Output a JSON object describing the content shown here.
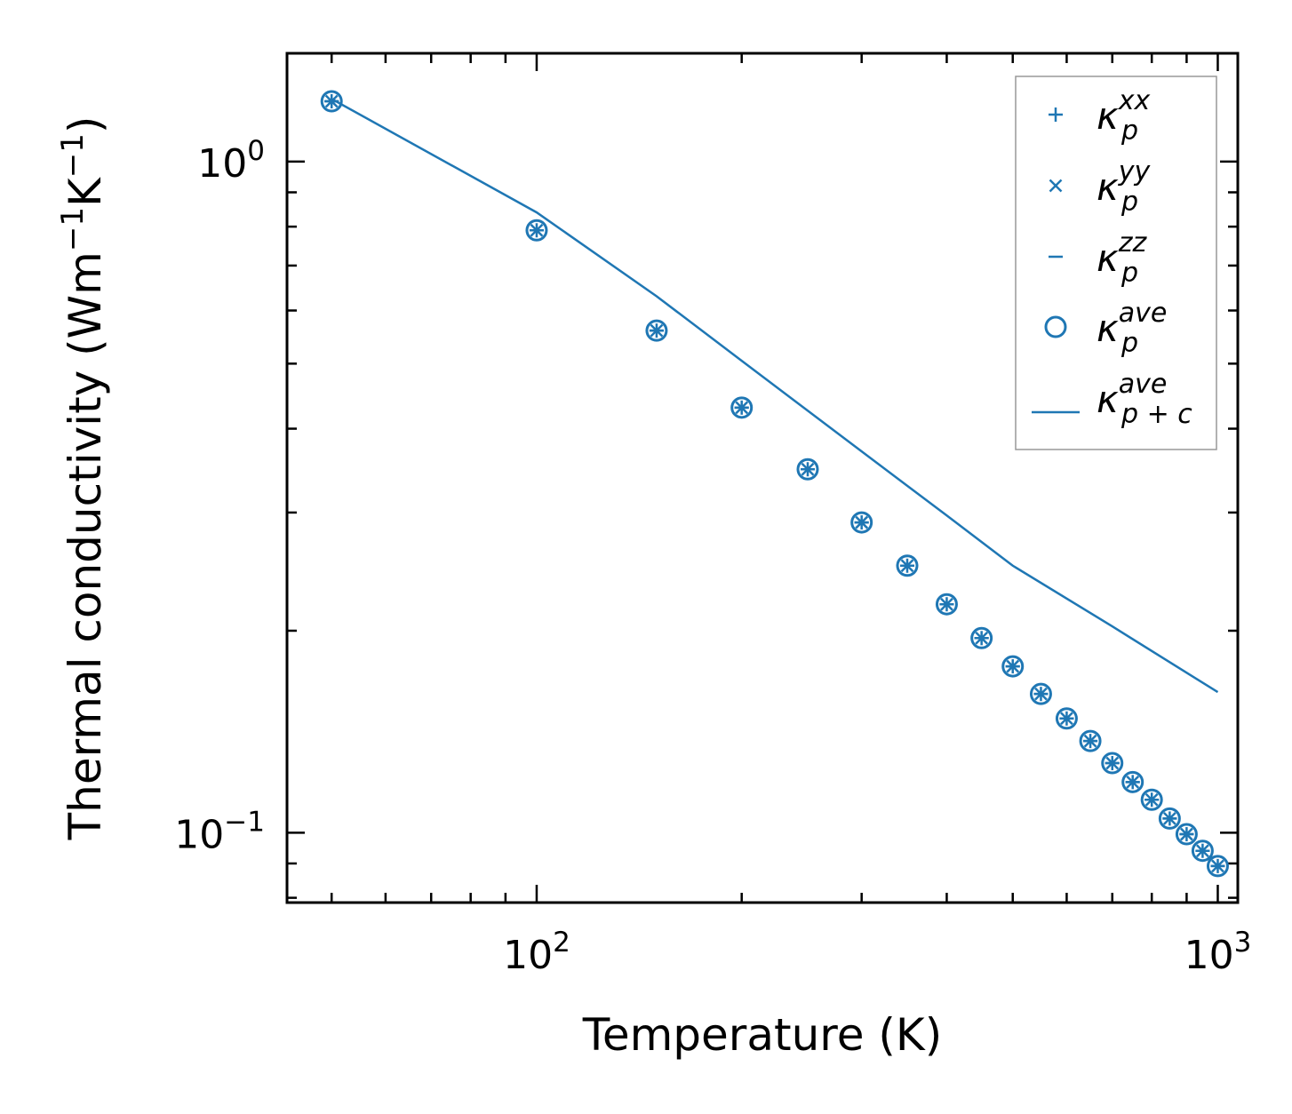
{
  "chart_data": {
    "type": "scatter",
    "title": "",
    "xlabel": "Temperature (K)",
    "ylabel_parts": [
      "Thermal conductivity (Wm",
      "−1",
      "K",
      "−1",
      ")"
    ],
    "xscale": "log",
    "yscale": "log",
    "xlim": [
      43,
      1070
    ],
    "ylim": [
      0.0787,
      1.45
    ],
    "x_ticks": [
      {
        "value": 100,
        "base": "10",
        "exp": "2"
      },
      {
        "value": 1000,
        "base": "10",
        "exp": "3"
      }
    ],
    "y_ticks": [
      {
        "value": 1.0,
        "base": "10",
        "exp": "0"
      },
      {
        "value": 0.1,
        "base": "10",
        "exp": "−1"
      }
    ],
    "legend_placement": "top-right",
    "x": [
      50,
      100,
      150,
      200,
      250,
      300,
      350,
      400,
      450,
      500,
      550,
      600,
      650,
      700,
      750,
      800,
      850,
      900,
      950,
      1000
    ],
    "series": [
      {
        "name": "kappa_p_xx",
        "marker": "plus",
        "legend_main": "κ",
        "legend_sub": "p",
        "legend_sup": "xx",
        "values": [
          1.23,
          0.79,
          0.56,
          0.43,
          0.348,
          0.29,
          0.25,
          0.219,
          0.195,
          0.177,
          0.161,
          0.148,
          0.137,
          0.127,
          0.119,
          0.112,
          0.105,
          0.0995,
          0.094,
          0.0892
        ]
      },
      {
        "name": "kappa_p_yy",
        "marker": "x",
        "legend_main": "κ",
        "legend_sub": "p",
        "legend_sup": "yy",
        "values": [
          1.23,
          0.79,
          0.56,
          0.43,
          0.348,
          0.29,
          0.25,
          0.219,
          0.195,
          0.177,
          0.161,
          0.148,
          0.137,
          0.127,
          0.119,
          0.112,
          0.105,
          0.0995,
          0.094,
          0.0892
        ]
      },
      {
        "name": "kappa_p_zz",
        "marker": "hline",
        "legend_main": "κ",
        "legend_sub": "p",
        "legend_sup": "zz",
        "values": [
          1.23,
          0.79,
          0.56,
          0.43,
          0.348,
          0.29,
          0.25,
          0.219,
          0.195,
          0.177,
          0.161,
          0.148,
          0.137,
          0.127,
          0.119,
          0.112,
          0.105,
          0.0995,
          0.094,
          0.0892
        ]
      },
      {
        "name": "kappa_p_ave",
        "marker": "circle",
        "legend_main": "κ",
        "legend_sub": "p",
        "legend_sup": "ave",
        "values": [
          1.23,
          0.79,
          0.56,
          0.43,
          0.348,
          0.29,
          0.25,
          0.219,
          0.195,
          0.177,
          0.161,
          0.148,
          0.137,
          0.127,
          0.119,
          0.112,
          0.105,
          0.0995,
          0.094,
          0.0892
        ]
      },
      {
        "name": "kappa_pc_ave",
        "marker": "line",
        "legend_main": "κ",
        "legend_sub": "p + c",
        "legend_sup": "ave",
        "x": [
          50,
          100,
          150,
          200,
          300,
          400,
          500,
          700,
          1000
        ],
        "values": [
          1.24,
          0.84,
          0.63,
          0.505,
          0.37,
          0.297,
          0.25,
          0.203,
          0.162
        ]
      }
    ],
    "colors": {
      "series": "#1f77b4",
      "axes": "#000000",
      "legend_frame": "#999999"
    }
  }
}
